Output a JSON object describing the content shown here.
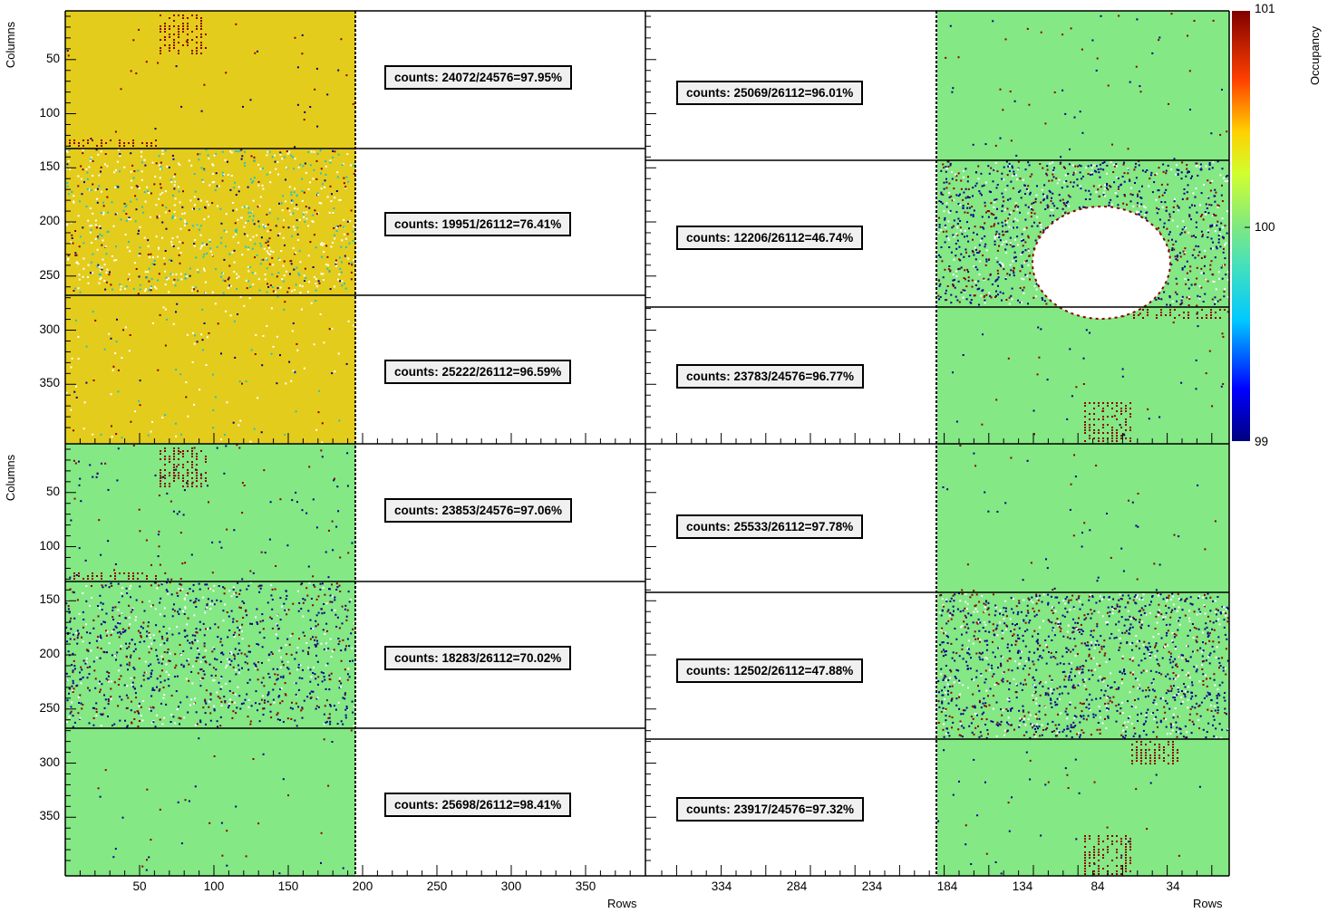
{
  "chart_data": {
    "type": "heatmap",
    "xlabel": "Rows",
    "ylabel": "Columns",
    "zlabel": "Occupancy",
    "colorbar": {
      "min_label": "99",
      "mid_label": "100",
      "max_label": "101",
      "range": [
        99,
        101
      ]
    },
    "y_ticks": [
      "50",
      "100",
      "150",
      "200",
      "250",
      "300",
      "350"
    ],
    "x_ticks_left": [
      "50",
      "100",
      "150",
      "200",
      "250",
      "300",
      "350"
    ],
    "x_ticks_right": [
      "334",
      "284",
      "234",
      "184",
      "134",
      "84",
      "34"
    ],
    "panels": [
      {
        "id": "top-left",
        "counts": [
          "counts: 24072/24576=97.95%",
          "counts: 19951/26112=76.41%",
          "counts: 25222/26112=96.59%"
        ]
      },
      {
        "id": "top-right",
        "counts": [
          "counts: 25069/26112=96.01%",
          "counts: 12206/26112=46.74%",
          "counts: 23783/24576=96.77%"
        ]
      },
      {
        "id": "bottom-left",
        "counts": [
          "counts: 23853/24576=97.06%",
          "counts: 18283/26112=70.02%",
          "counts: 25698/26112=98.41%"
        ]
      },
      {
        "id": "bottom-right",
        "counts": [
          "counts: 25533/26112=97.78%",
          "counts: 12502/26112=47.88%",
          "counts: 23917/24576=97.32%"
        ]
      }
    ],
    "colors": {
      "occupancy_high": "#e4cc1c",
      "occupancy_nominal": "#84e884",
      "hot": "#8b0000",
      "cold": "#00008b",
      "cyan": "#22c4c4",
      "empty": "#ffffff"
    }
  }
}
